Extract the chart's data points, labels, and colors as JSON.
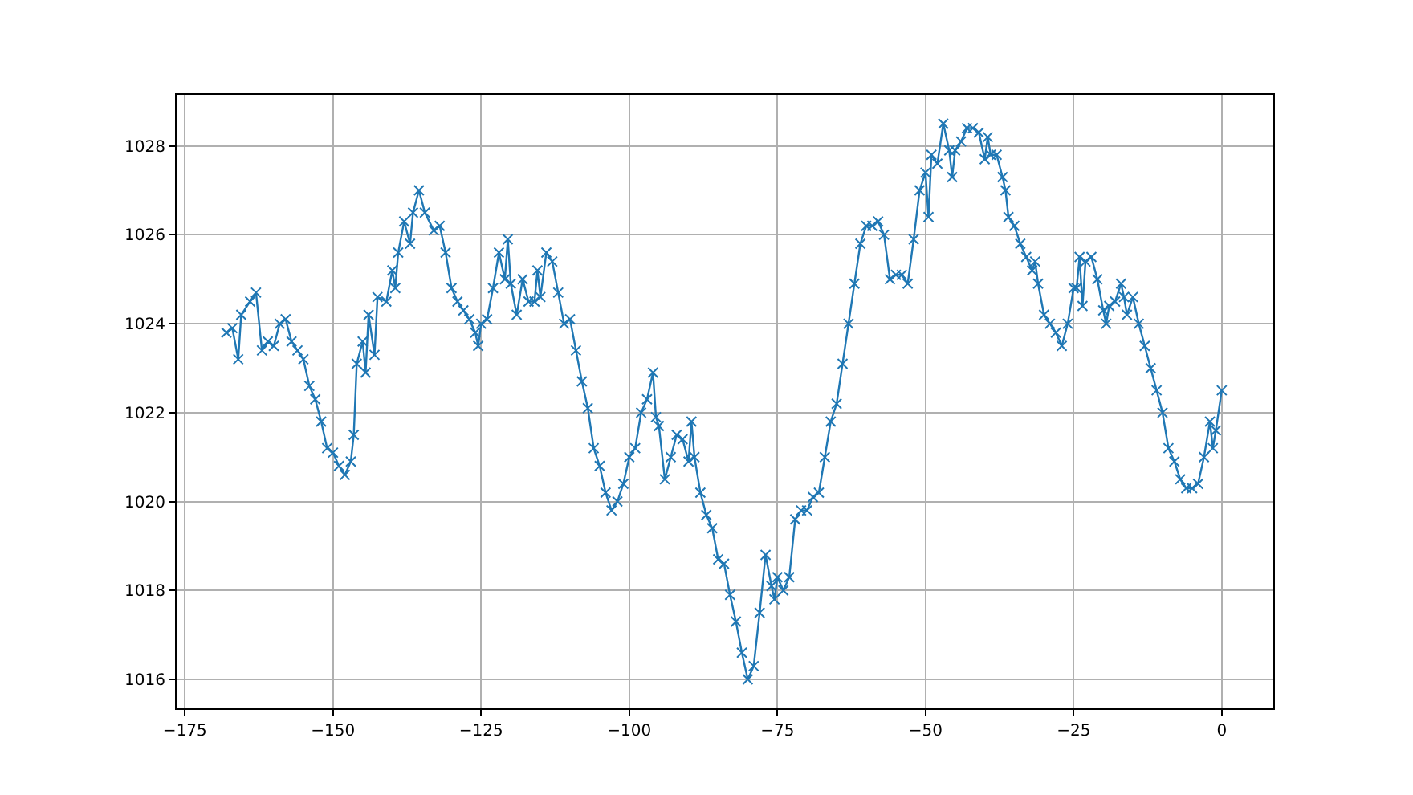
{
  "chart_data": {
    "type": "line",
    "marker": "cross",
    "line_style": "solid",
    "grid": true,
    "xlim": [
      -176.4,
      8.7
    ],
    "ylim": [
      1015.35,
      1029.15
    ],
    "xticks": [
      -175,
      -150,
      -125,
      -100,
      -75,
      -50,
      -25,
      0
    ],
    "yticks": [
      1016,
      1018,
      1020,
      1022,
      1024,
      1026,
      1028
    ],
    "series": [
      {
        "color": "#1f77b4",
        "x": [
          -168,
          -167,
          -166,
          -165.5,
          -164,
          -163,
          -162,
          -161,
          -160,
          -159,
          -158,
          -157,
          -156,
          -155,
          -154,
          -153,
          -152,
          -151,
          -150,
          -149,
          -148,
          -147,
          -146.5,
          -146,
          -145,
          -144.5,
          -144,
          -143,
          -142.5,
          -141,
          -140,
          -139.5,
          -139,
          -138,
          -137,
          -136.5,
          -135.5,
          -134.5,
          -133,
          -132,
          -131,
          -130,
          -129,
          -128,
          -127,
          -126,
          -125.5,
          -125,
          -124,
          -123,
          -122,
          -121,
          -120.5,
          -120,
          -119,
          -118,
          -117,
          -116,
          -115.5,
          -115,
          -114,
          -113,
          -112,
          -111,
          -110,
          -109,
          -108,
          -107,
          -106,
          -105,
          -104,
          -103,
          -102,
          -101,
          -100,
          -99,
          -98,
          -97,
          -96,
          -95.5,
          -95,
          -94,
          -93,
          -92,
          -91,
          -90,
          -89.5,
          -89,
          -88,
          -87,
          -86,
          -85,
          -84,
          -83,
          -82,
          -81,
          -80,
          -79,
          -78,
          -77,
          -76,
          -75.5,
          -75,
          -74,
          -73,
          -72,
          -71,
          -70,
          -69,
          -68,
          -67,
          -66,
          -65,
          -64,
          -63,
          -62,
          -61,
          -60,
          -59,
          -58,
          -57,
          -56,
          -55,
          -54,
          -53,
          -52,
          -51,
          -50,
          -49.5,
          -49,
          -48,
          -47,
          -46,
          -45.5,
          -45,
          -44,
          -43,
          -42,
          -41,
          -40,
          -39.5,
          -39,
          -38,
          -37,
          -36.5,
          -36,
          -35,
          -34,
          -33,
          -32,
          -31.5,
          -31,
          -30,
          -29,
          -28,
          -27,
          -26,
          -25,
          -24.5,
          -24,
          -23.5,
          -23,
          -22,
          -21,
          -20,
          -19.5,
          -19,
          -18,
          -17,
          -16.5,
          -16,
          -15,
          -14,
          -13,
          -12,
          -11,
          -10,
          -9,
          -8,
          -7,
          -6,
          -5,
          -4,
          -3,
          -2,
          -1.5,
          -1,
          0
        ],
        "values": [
          1023.8,
          1023.9,
          1023.2,
          1024.2,
          1024.5,
          1024.7,
          1023.4,
          1023.6,
          1023.5,
          1024.0,
          1024.1,
          1023.6,
          1023.4,
          1023.2,
          1022.6,
          1022.3,
          1021.8,
          1021.2,
          1021.1,
          1020.8,
          1020.6,
          1020.9,
          1021.5,
          1023.1,
          1023.6,
          1022.9,
          1024.2,
          1023.3,
          1024.6,
          1024.5,
          1025.2,
          1024.8,
          1025.6,
          1026.3,
          1025.8,
          1026.5,
          1027.0,
          1026.5,
          1026.1,
          1026.2,
          1025.6,
          1024.8,
          1024.5,
          1024.3,
          1024.1,
          1023.8,
          1023.5,
          1024.0,
          1024.1,
          1024.8,
          1025.6,
          1025.0,
          1025.9,
          1024.9,
          1024.2,
          1025.0,
          1024.5,
          1024.5,
          1025.2,
          1024.6,
          1025.6,
          1025.4,
          1024.7,
          1024.0,
          1024.1,
          1023.4,
          1022.7,
          1022.1,
          1021.2,
          1020.8,
          1020.2,
          1019.8,
          1020.0,
          1020.4,
          1021.0,
          1021.2,
          1022.0,
          1022.3,
          1022.9,
          1021.9,
          1021.7,
          1020.5,
          1021.0,
          1021.5,
          1021.4,
          1020.9,
          1021.8,
          1021.0,
          1020.2,
          1019.7,
          1019.4,
          1018.7,
          1018.6,
          1017.9,
          1017.3,
          1016.6,
          1016.0,
          1016.3,
          1017.5,
          1018.8,
          1018.1,
          1017.8,
          1018.3,
          1018.0,
          1018.3,
          1019.6,
          1019.8,
          1019.8,
          1020.1,
          1020.2,
          1021.0,
          1021.8,
          1022.2,
          1023.1,
          1024.0,
          1024.9,
          1025.8,
          1026.2,
          1026.2,
          1026.3,
          1026.0,
          1025.0,
          1025.1,
          1025.1,
          1024.9,
          1025.9,
          1027.0,
          1027.4,
          1026.4,
          1027.8,
          1027.6,
          1028.5,
          1027.9,
          1027.3,
          1027.9,
          1028.1,
          1028.4,
          1028.4,
          1028.3,
          1027.7,
          1028.2,
          1027.8,
          1027.8,
          1027.3,
          1027.0,
          1026.4,
          1026.2,
          1025.8,
          1025.5,
          1025.2,
          1025.4,
          1024.9,
          1024.2,
          1024.0,
          1023.8,
          1023.5,
          1024.0,
          1024.8,
          1024.8,
          1025.5,
          1024.4,
          1025.4,
          1025.5,
          1025.0,
          1024.3,
          1024.0,
          1024.4,
          1024.5,
          1024.9,
          1024.6,
          1024.2,
          1024.6,
          1024.0,
          1023.5,
          1023.0,
          1022.5,
          1022.0,
          1021.2,
          1020.9,
          1020.5,
          1020.3,
          1020.3,
          1020.4,
          1021.0,
          1021.8,
          1021.2,
          1021.6,
          1022.5
        ]
      }
    ]
  }
}
